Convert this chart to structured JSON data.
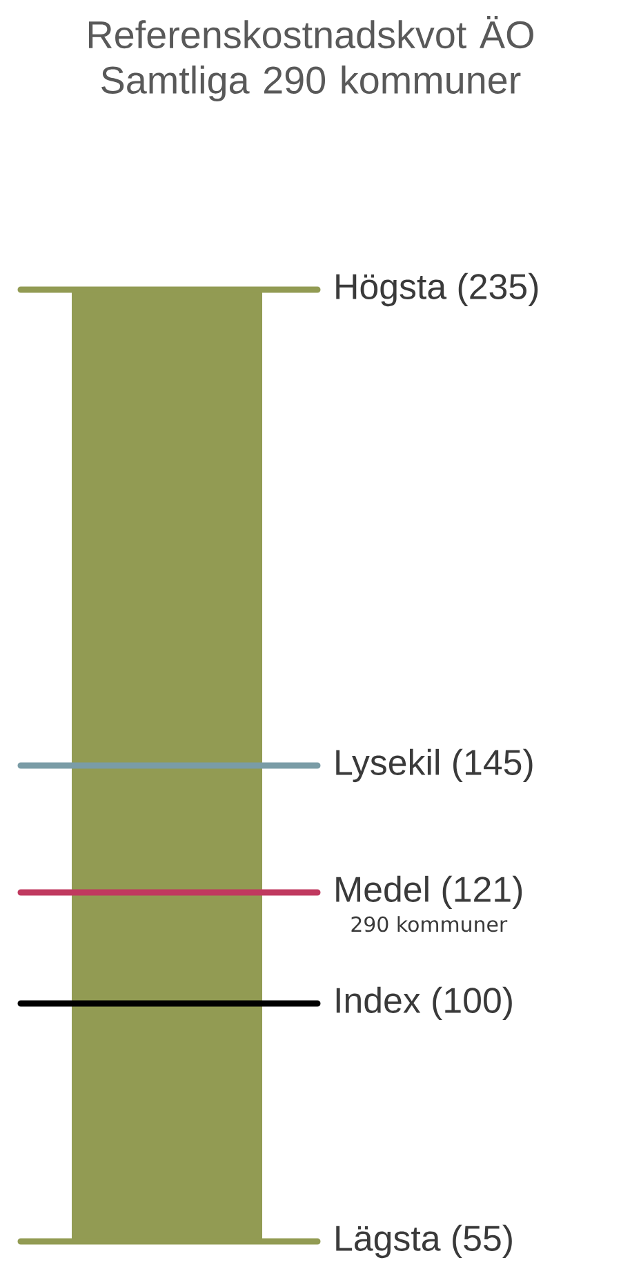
{
  "chart_data": {
    "type": "bar",
    "title": "Referenskostnadskvot ÄO Samtliga 290 kommuner",
    "categories": [
      null
    ],
    "base": [
      55
    ],
    "values": [
      180
    ],
    "color": "#929b53",
    "ylim": [
      55,
      235
    ],
    "ref_lines": [
      {
        "axis": "y",
        "value": 235,
        "label": "Högsta (235)",
        "color": "#929b53"
      },
      {
        "axis": "y",
        "value": 145,
        "label": "Lysekil (145)",
        "color": "#7a9ca6"
      },
      {
        "axis": "y",
        "value": 121,
        "label": "Medel (121)",
        "color": "#c0395f"
      },
      {
        "axis": "y",
        "value": 100,
        "label": "Index (100)",
        "color": "#000000"
      },
      {
        "axis": "y",
        "value": 55,
        "label": "Lägsta (55)",
        "color": "#929b53"
      }
    ],
    "annotations": [
      "290 kommuner"
    ]
  }
}
